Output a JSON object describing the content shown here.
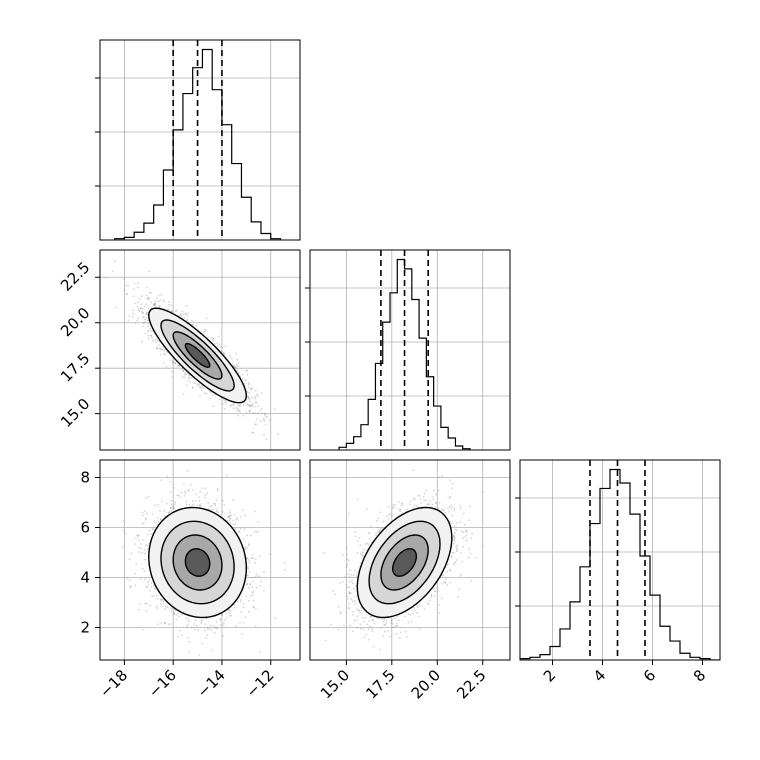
{
  "chart_data": {
    "type": "corner",
    "grid": true,
    "parameters": [
      {
        "range": [
          -19.0,
          -10.8
        ],
        "ticks": [
          "−18",
          "−16",
          "−14",
          "−12"
        ],
        "tick_values": [
          -18,
          -16,
          -14,
          -12
        ],
        "quantiles": [
          -16.0,
          -15.0,
          -14.0
        ],
        "histogram": {
          "bin_edges": [
            -18.4,
            -18.0,
            -17.6,
            -17.2,
            -16.8,
            -16.4,
            -16.0,
            -15.6,
            -15.2,
            -14.8,
            -14.4,
            -14.0,
            -13.6,
            -13.2,
            -12.8,
            -12.4,
            -12.0,
            -11.6
          ],
          "counts": [
            1,
            2,
            6,
            13,
            27,
            54,
            85,
            113,
            133,
            147,
            116,
            89,
            59,
            33,
            14,
            5,
            1
          ]
        }
      },
      {
        "range": [
          13.0,
          24.0
        ],
        "ticks": [
          "15.0",
          "17.5",
          "20.0",
          "22.5"
        ],
        "tick_values": [
          15.0,
          17.5,
          20.0,
          22.5
        ],
        "quantiles": [
          16.9,
          18.2,
          19.5
        ],
        "histogram": {
          "bin_edges": [
            14.6,
            15.0,
            15.4,
            15.8,
            16.2,
            16.6,
            17.0,
            17.4,
            17.8,
            18.2,
            18.6,
            19.0,
            19.4,
            19.8,
            20.2,
            20.6,
            21.0,
            21.4,
            21.8
          ],
          "counts": [
            2,
            5,
            10,
            19,
            38,
            65,
            96,
            118,
            143,
            136,
            113,
            84,
            55,
            33,
            17,
            9,
            3,
            1
          ]
        }
      },
      {
        "range": [
          0.7,
          8.7
        ],
        "ticks": [
          "2",
          "4",
          "6",
          "8"
        ],
        "tick_values": [
          2,
          4,
          6,
          8
        ],
        "quantiles": [
          3.5,
          4.6,
          5.7
        ],
        "histogram": {
          "bin_edges": [
            0.7,
            1.1,
            1.5,
            1.9,
            2.3,
            2.7,
            3.1,
            3.5,
            3.9,
            4.3,
            4.7,
            5.1,
            5.5,
            5.9,
            6.3,
            6.7,
            7.1,
            7.5,
            7.9,
            8.3,
            8.7
          ],
          "counts": [
            1,
            2,
            4,
            10,
            23,
            43,
            69,
            101,
            127,
            141,
            131,
            108,
            77,
            48,
            25,
            14,
            5,
            2,
            1,
            0
          ]
        }
      }
    ],
    "pairs": [
      {
        "x": 0,
        "y": 1,
        "mean": [
          -15.0,
          18.2
        ],
        "sd": [
          1.0,
          1.3
        ],
        "rho": -0.85
      },
      {
        "x": 0,
        "y": 2,
        "mean": [
          -15.0,
          4.6
        ],
        "sd": [
          1.0,
          1.1
        ],
        "rho": -0.1
      },
      {
        "x": 1,
        "y": 2,
        "mean": [
          18.2,
          4.6
        ],
        "sd": [
          1.3,
          1.1
        ],
        "rho": 0.45
      }
    ],
    "contour_levels_sigma": [
      0.5,
      1.0,
      1.5,
      2.0
    ]
  }
}
